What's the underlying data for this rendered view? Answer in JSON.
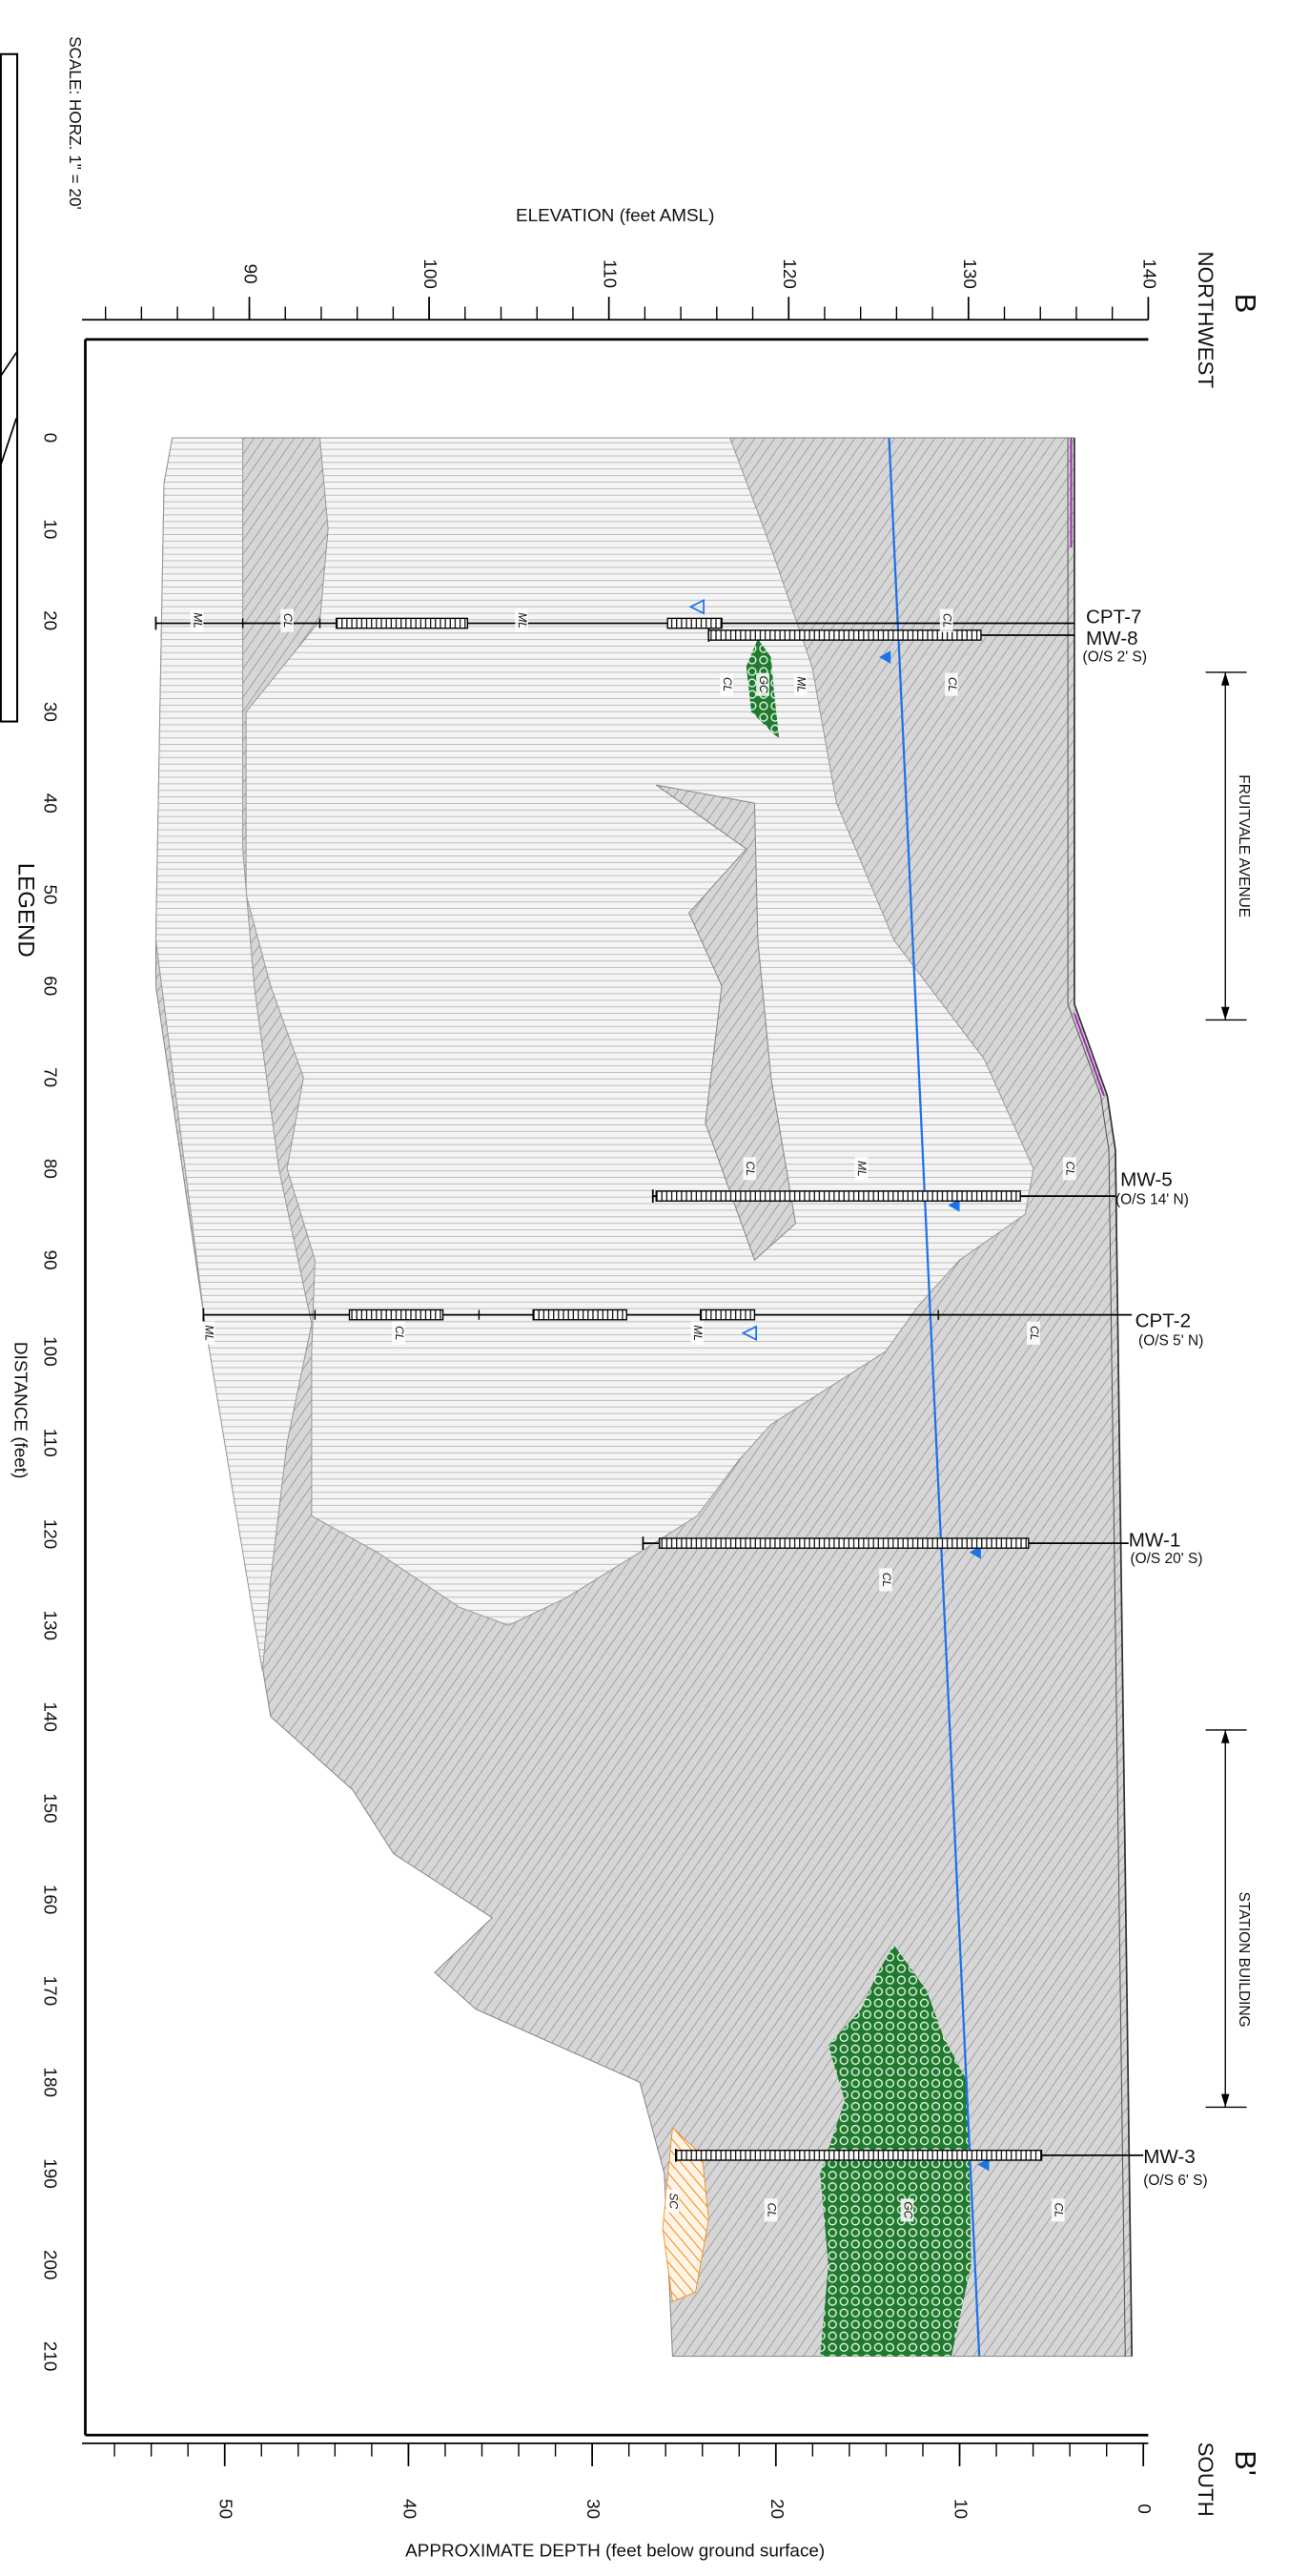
{
  "header": {
    "scale": "SCALE:  HORZ.  1\" = 20'",
    "legend": "LEGEND"
  },
  "section": {
    "start": {
      "letter": "B",
      "direction": "NORTHWEST"
    },
    "end": {
      "letter": "B'",
      "direction": "SOUTH"
    }
  },
  "axes": {
    "elevation": {
      "title": "ELEVATION (feet AMSL)",
      "ticks": [
        90,
        100,
        110,
        120,
        130,
        140
      ]
    },
    "depth": {
      "title": "APPROXIMATE DEPTH (feet below ground surface)",
      "ticks": [
        0,
        10,
        20,
        30,
        40,
        50
      ]
    },
    "distance": {
      "title": "DISTANCE (feet)",
      "ticks": [
        0,
        10,
        20,
        30,
        40,
        50,
        60,
        70,
        80,
        90,
        100,
        110,
        120,
        130,
        140,
        150,
        160,
        170,
        180,
        190,
        200,
        210
      ]
    }
  },
  "features": [
    {
      "label": "FRUITVALE AVENUE"
    },
    {
      "label": "STATION BUILDING"
    }
  ],
  "wells": [
    {
      "names": [
        "CPT-7",
        "MW-8"
      ],
      "offset": "(O/S 2' S)"
    },
    {
      "names": [
        "MW-5"
      ],
      "offset": "(O/S 14' N)"
    },
    {
      "names": [
        "CPT-2"
      ],
      "offset": "(O/S 5' N)"
    },
    {
      "names": [
        "MW-1"
      ],
      "offset": "(O/S 20' S)"
    },
    {
      "names": [
        "MW-3"
      ],
      "offset": "(O/S 6' S)"
    }
  ],
  "soil_labels": [
    "ML",
    "CL",
    "ML",
    "CL",
    "CL",
    "GC",
    "ML",
    "CL",
    "CL",
    "ML",
    "CL",
    "ML",
    "CL",
    "ML",
    "CL",
    "CL",
    "SC",
    "CL",
    "GC",
    "CL"
  ]
}
